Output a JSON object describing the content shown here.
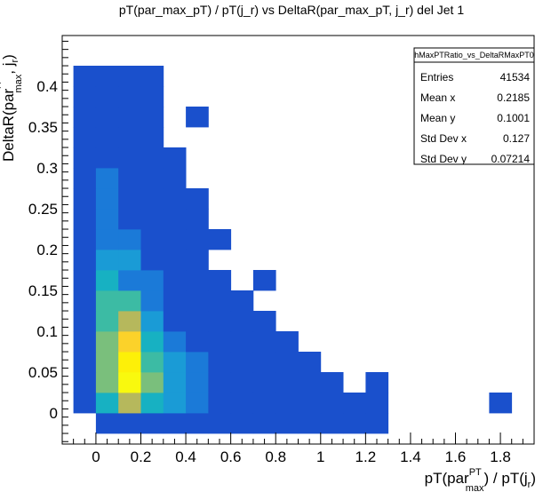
{
  "chart_data": {
    "type": "heatmap",
    "title": "pT(par_max_pT) / pT(j_r) vs DeltaR(par_max_pT, j_r) del Jet 1",
    "xlabel": {
      "pre": "pT(par",
      "sup": "PT",
      "sub": "max",
      "post": ") / pT(j",
      "sub2": "r",
      "end": ")"
    },
    "ylabel": {
      "pre": "DeltaR(par",
      "sup": "' '",
      "sub": "max",
      "post": ", j",
      "sub2": "r",
      "end": ")"
    },
    "xlim": [
      -0.15,
      1.95
    ],
    "ylim": [
      -0.038,
      0.462
    ],
    "x_ticks": [
      "0",
      "0.2",
      "0.4",
      "0.6",
      "0.8",
      "1",
      "1.2",
      "1.4",
      "1.6",
      "1.8"
    ],
    "y_ticks": [
      "0",
      "0.05",
      "0.1",
      "0.15",
      "0.2",
      "0.25",
      "0.3",
      "0.35",
      "0.4"
    ],
    "x_bin_width": 0.1,
    "y_bin_width": 0.025,
    "palette": [
      "#1a50cc",
      "#1b7ad8",
      "#1a9bd6",
      "#17b1c2",
      "#3cbba4",
      "#7abf7c",
      "#b6b85c",
      "#fbd22a",
      "#fdf008",
      "#f9f90e"
    ],
    "cells": [
      {
        "x": -0.1,
        "y": 0.0,
        "level": 0
      },
      {
        "x": 0.0,
        "y": -0.025,
        "level": 0
      },
      {
        "x": 0.1,
        "y": -0.025,
        "level": 0
      },
      {
        "x": 0.2,
        "y": -0.025,
        "level": 0
      },
      {
        "x": 0.3,
        "y": -0.025,
        "level": 0
      },
      {
        "x": 0.4,
        "y": -0.025,
        "level": 0
      },
      {
        "x": 0.5,
        "y": -0.025,
        "level": 0
      },
      {
        "x": 0.6,
        "y": -0.025,
        "level": 0
      },
      {
        "x": 0.7,
        "y": -0.025,
        "level": 0
      },
      {
        "x": 0.8,
        "y": -0.025,
        "level": 0
      },
      {
        "x": 0.9,
        "y": -0.025,
        "level": 0
      },
      {
        "x": 1.0,
        "y": -0.025,
        "level": 0
      },
      {
        "x": 1.1,
        "y": -0.025,
        "level": 0
      },
      {
        "x": 1.2,
        "y": -0.025,
        "level": 0
      },
      {
        "x": 0.0,
        "y": 0.0,
        "level": 3
      },
      {
        "x": 0.1,
        "y": 0.0,
        "level": 6
      },
      {
        "x": 0.2,
        "y": 0.0,
        "level": 3
      },
      {
        "x": 0.3,
        "y": 0.0,
        "level": 2
      },
      {
        "x": 0.4,
        "y": 0.0,
        "level": 1
      },
      {
        "x": 0.5,
        "y": 0.0,
        "level": 0
      },
      {
        "x": 0.6,
        "y": 0.0,
        "level": 0
      },
      {
        "x": 0.7,
        "y": 0.0,
        "level": 0
      },
      {
        "x": 0.8,
        "y": 0.0,
        "level": 0
      },
      {
        "x": 0.9,
        "y": 0.0,
        "level": 0
      },
      {
        "x": 1.0,
        "y": 0.0,
        "level": 0
      },
      {
        "x": 1.1,
        "y": 0.0,
        "level": 0
      },
      {
        "x": 1.2,
        "y": 0.0,
        "level": 0
      },
      {
        "x": 1.75,
        "y": 0.0,
        "level": 0
      },
      {
        "x": -0.1,
        "y": 0.025,
        "level": 0
      },
      {
        "x": 0.0,
        "y": 0.025,
        "level": 5
      },
      {
        "x": 0.1,
        "y": 0.025,
        "level": 9
      },
      {
        "x": 0.2,
        "y": 0.025,
        "level": 5
      },
      {
        "x": 0.3,
        "y": 0.025,
        "level": 2
      },
      {
        "x": 0.4,
        "y": 0.025,
        "level": 1
      },
      {
        "x": 0.5,
        "y": 0.025,
        "level": 0
      },
      {
        "x": 0.6,
        "y": 0.025,
        "level": 0
      },
      {
        "x": 0.7,
        "y": 0.025,
        "level": 0
      },
      {
        "x": 0.8,
        "y": 0.025,
        "level": 0
      },
      {
        "x": 0.9,
        "y": 0.025,
        "level": 0
      },
      {
        "x": 1.0,
        "y": 0.025,
        "level": 0
      },
      {
        "x": 1.2,
        "y": 0.025,
        "level": 0
      },
      {
        "x": -0.1,
        "y": 0.05,
        "level": 0
      },
      {
        "x": 0.0,
        "y": 0.05,
        "level": 5
      },
      {
        "x": 0.1,
        "y": 0.05,
        "level": 8
      },
      {
        "x": 0.2,
        "y": 0.05,
        "level": 4
      },
      {
        "x": 0.3,
        "y": 0.05,
        "level": 2
      },
      {
        "x": 0.4,
        "y": 0.05,
        "level": 1
      },
      {
        "x": 0.5,
        "y": 0.05,
        "level": 0
      },
      {
        "x": 0.6,
        "y": 0.05,
        "level": 0
      },
      {
        "x": 0.7,
        "y": 0.05,
        "level": 0
      },
      {
        "x": 0.8,
        "y": 0.05,
        "level": 0
      },
      {
        "x": 0.9,
        "y": 0.05,
        "level": 0
      },
      {
        "x": -0.1,
        "y": 0.075,
        "level": 0
      },
      {
        "x": 0.0,
        "y": 0.075,
        "level": 5
      },
      {
        "x": 0.1,
        "y": 0.075,
        "level": 7
      },
      {
        "x": 0.2,
        "y": 0.075,
        "level": 3
      },
      {
        "x": 0.3,
        "y": 0.075,
        "level": 1
      },
      {
        "x": 0.4,
        "y": 0.075,
        "level": 0
      },
      {
        "x": 0.5,
        "y": 0.075,
        "level": 0
      },
      {
        "x": 0.6,
        "y": 0.075,
        "level": 0
      },
      {
        "x": 0.7,
        "y": 0.075,
        "level": 0
      },
      {
        "x": 0.8,
        "y": 0.075,
        "level": 0
      },
      {
        "x": -0.1,
        "y": 0.1,
        "level": 0
      },
      {
        "x": 0.0,
        "y": 0.1,
        "level": 4
      },
      {
        "x": 0.1,
        "y": 0.1,
        "level": 6
      },
      {
        "x": 0.2,
        "y": 0.1,
        "level": 2
      },
      {
        "x": 0.3,
        "y": 0.1,
        "level": 0
      },
      {
        "x": 0.4,
        "y": 0.1,
        "level": 0
      },
      {
        "x": 0.5,
        "y": 0.1,
        "level": 0
      },
      {
        "x": 0.6,
        "y": 0.1,
        "level": 0
      },
      {
        "x": 0.7,
        "y": 0.1,
        "level": 0
      },
      {
        "x": -0.1,
        "y": 0.125,
        "level": 0
      },
      {
        "x": 0.0,
        "y": 0.125,
        "level": 4
      },
      {
        "x": 0.1,
        "y": 0.125,
        "level": 4
      },
      {
        "x": 0.2,
        "y": 0.125,
        "level": 1
      },
      {
        "x": 0.3,
        "y": 0.125,
        "level": 0
      },
      {
        "x": 0.4,
        "y": 0.125,
        "level": 0
      },
      {
        "x": 0.5,
        "y": 0.125,
        "level": 0
      },
      {
        "x": 0.6,
        "y": 0.125,
        "level": 0
      },
      {
        "x": -0.1,
        "y": 0.15,
        "level": 0
      },
      {
        "x": 0.0,
        "y": 0.15,
        "level": 3
      },
      {
        "x": 0.1,
        "y": 0.15,
        "level": 1
      },
      {
        "x": 0.2,
        "y": 0.15,
        "level": 1
      },
      {
        "x": 0.3,
        "y": 0.15,
        "level": 0
      },
      {
        "x": 0.4,
        "y": 0.15,
        "level": 0
      },
      {
        "x": 0.5,
        "y": 0.15,
        "level": 0
      },
      {
        "x": 0.7,
        "y": 0.15,
        "level": 0
      },
      {
        "x": -0.1,
        "y": 0.175,
        "level": 0
      },
      {
        "x": 0.0,
        "y": 0.175,
        "level": 2
      },
      {
        "x": 0.1,
        "y": 0.175,
        "level": 2
      },
      {
        "x": 0.2,
        "y": 0.175,
        "level": 0
      },
      {
        "x": 0.3,
        "y": 0.175,
        "level": 0
      },
      {
        "x": 0.4,
        "y": 0.175,
        "level": 0
      },
      {
        "x": -0.1,
        "y": 0.2,
        "level": 0
      },
      {
        "x": 0.0,
        "y": 0.2,
        "level": 1
      },
      {
        "x": 0.1,
        "y": 0.2,
        "level": 1
      },
      {
        "x": 0.2,
        "y": 0.2,
        "level": 0
      },
      {
        "x": 0.3,
        "y": 0.2,
        "level": 0
      },
      {
        "x": 0.4,
        "y": 0.2,
        "level": 0
      },
      {
        "x": 0.5,
        "y": 0.2,
        "level": 0
      },
      {
        "x": -0.1,
        "y": 0.225,
        "level": 0
      },
      {
        "x": 0.0,
        "y": 0.225,
        "level": 1
      },
      {
        "x": 0.1,
        "y": 0.225,
        "level": 0
      },
      {
        "x": 0.2,
        "y": 0.225,
        "level": 0
      },
      {
        "x": 0.3,
        "y": 0.225,
        "level": 0
      },
      {
        "x": 0.4,
        "y": 0.225,
        "level": 0
      },
      {
        "x": -0.1,
        "y": 0.25,
        "level": 0
      },
      {
        "x": 0.0,
        "y": 0.25,
        "level": 1
      },
      {
        "x": 0.1,
        "y": 0.25,
        "level": 0
      },
      {
        "x": 0.2,
        "y": 0.25,
        "level": 0
      },
      {
        "x": 0.3,
        "y": 0.25,
        "level": 0
      },
      {
        "x": 0.4,
        "y": 0.25,
        "level": 0
      },
      {
        "x": -0.1,
        "y": 0.275,
        "level": 0
      },
      {
        "x": 0.0,
        "y": 0.275,
        "level": 1
      },
      {
        "x": 0.1,
        "y": 0.275,
        "level": 0
      },
      {
        "x": 0.2,
        "y": 0.275,
        "level": 0
      },
      {
        "x": 0.3,
        "y": 0.275,
        "level": 0
      },
      {
        "x": -0.1,
        "y": 0.3,
        "level": 0
      },
      {
        "x": 0.0,
        "y": 0.3,
        "level": 0
      },
      {
        "x": 0.1,
        "y": 0.3,
        "level": 0
      },
      {
        "x": 0.2,
        "y": 0.3,
        "level": 0
      },
      {
        "x": 0.3,
        "y": 0.3,
        "level": 0
      },
      {
        "x": -0.1,
        "y": 0.325,
        "level": 0
      },
      {
        "x": 0.0,
        "y": 0.325,
        "level": 0
      },
      {
        "x": 0.1,
        "y": 0.325,
        "level": 0
      },
      {
        "x": 0.2,
        "y": 0.325,
        "level": 0
      },
      {
        "x": -0.1,
        "y": 0.35,
        "level": 0
      },
      {
        "x": 0.0,
        "y": 0.35,
        "level": 0
      },
      {
        "x": 0.1,
        "y": 0.35,
        "level": 0
      },
      {
        "x": 0.2,
        "y": 0.35,
        "level": 0
      },
      {
        "x": 0.4,
        "y": 0.35,
        "level": 0
      },
      {
        "x": -0.1,
        "y": 0.375,
        "level": 0
      },
      {
        "x": 0.0,
        "y": 0.375,
        "level": 0
      },
      {
        "x": 0.1,
        "y": 0.375,
        "level": 0
      },
      {
        "x": 0.2,
        "y": 0.375,
        "level": 0
      },
      {
        "x": -0.1,
        "y": 0.4,
        "level": 0
      },
      {
        "x": 0.0,
        "y": 0.4,
        "level": 0
      },
      {
        "x": 0.1,
        "y": 0.4,
        "level": 0
      },
      {
        "x": 0.2,
        "y": 0.4,
        "level": 0
      }
    ],
    "stats": {
      "name": "hMaxPTRatio_vs_DeltaRMaxPT0",
      "rows": [
        {
          "label": "Entries",
          "value": "41534"
        },
        {
          "label": "Mean x",
          "value": "0.2185"
        },
        {
          "label": "Mean y",
          "value": "0.1001"
        },
        {
          "label": "Std Dev x",
          "value": "0.127"
        },
        {
          "label": "Std Dev y",
          "value": "0.07214"
        }
      ]
    }
  }
}
